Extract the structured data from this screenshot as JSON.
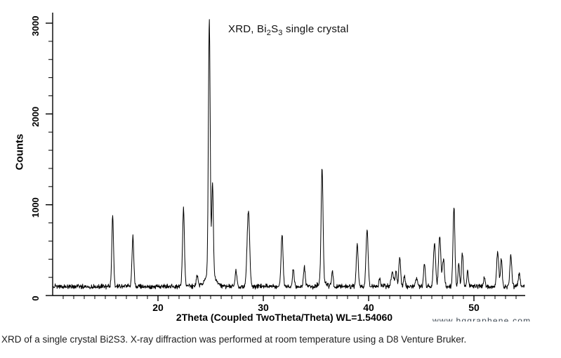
{
  "page": {
    "background": "#ffffff"
  },
  "chart_title": {
    "prefix": "XRD, Bi",
    "sub1": "2",
    "mid": "S",
    "sub2": "3",
    "suffix": " single crystal"
  },
  "caption": "XRD of a single crystal Bi2S3. X-ray diffraction was performed at room temperature using a D8 Venture Bruker.",
  "watermark": "www.hqgraphene.com",
  "chart_data": {
    "type": "line",
    "title": "XRD, Bi2S3 single crystal",
    "xlabel": "2Theta (Coupled TwoTheta/Theta) WL=1.54060",
    "ylabel": "Counts",
    "xlim": [
      10,
      55
    ],
    "ylim": [
      0,
      3100
    ],
    "x_major_ticks": [
      20,
      30,
      40,
      50
    ],
    "x_minor_step": 1,
    "y_major_ticks": [
      0,
      1000,
      2000,
      3000
    ],
    "y_minor_step": 200,
    "grid": false,
    "legend": "none",
    "line_color": "#000000",
    "baseline_counts": 100,
    "noise_counts": 32,
    "x_start": 10.0,
    "x_end": 54.8,
    "x_step": 0.03,
    "peaks_comment": "each peak = [two_theta_deg, height_above_baseline_counts, sigma_deg]; apex counts ~= height + baseline",
    "peaks": [
      [
        15.7,
        765,
        0.085
      ],
      [
        17.62,
        550,
        0.085
      ],
      [
        22.42,
        850,
        0.09
      ],
      [
        23.72,
        130,
        0.08
      ],
      [
        24.87,
        2765,
        0.085
      ],
      [
        24.95,
        170,
        0.4
      ],
      [
        25.18,
        990,
        0.075
      ],
      [
        27.4,
        190,
        0.075
      ],
      [
        28.58,
        840,
        0.12
      ],
      [
        31.78,
        585,
        0.09
      ],
      [
        32.85,
        190,
        0.08
      ],
      [
        33.9,
        220,
        0.08
      ],
      [
        35.58,
        1240,
        0.09
      ],
      [
        35.6,
        60,
        0.3
      ],
      [
        36.55,
        190,
        0.07
      ],
      [
        38.92,
        470,
        0.09
      ],
      [
        39.85,
        615,
        0.1
      ],
      [
        41.05,
        85,
        0.07
      ],
      [
        42.25,
        155,
        0.12
      ],
      [
        42.6,
        170,
        0.08
      ],
      [
        42.95,
        340,
        0.08
      ],
      [
        43.4,
        120,
        0.07
      ],
      [
        44.55,
        90,
        0.1
      ],
      [
        45.3,
        260,
        0.08
      ],
      [
        46.25,
        480,
        0.1
      ],
      [
        46.75,
        560,
        0.1
      ],
      [
        47.1,
        300,
        0.09
      ],
      [
        48.1,
        870,
        0.09
      ],
      [
        48.55,
        250,
        0.07
      ],
      [
        48.9,
        370,
        0.08
      ],
      [
        49.4,
        180,
        0.07
      ],
      [
        51.0,
        100,
        0.08
      ],
      [
        52.25,
        375,
        0.1
      ],
      [
        52.6,
        300,
        0.08
      ],
      [
        53.5,
        340,
        0.09
      ],
      [
        54.3,
        145,
        0.08
      ]
    ]
  }
}
